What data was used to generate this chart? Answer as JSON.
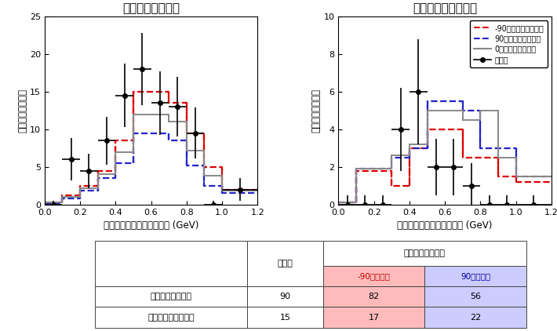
{
  "left_title": "電子ニュートリノ",
  "right_title": "反電子ニュートリノ",
  "xlabel": "ニュートリノのエネルギー (GeV)",
  "ylabel": "ニュートリノの数",
  "xlim": [
    0,
    1.2
  ],
  "left_ylim": [
    0,
    25
  ],
  "right_ylim": [
    0,
    10
  ],
  "left_yticks": [
    0,
    5,
    10,
    15,
    20,
    25
  ],
  "right_yticks": [
    0,
    2,
    4,
    6,
    8,
    10
  ],
  "bin_edges": [
    0.0,
    0.1,
    0.2,
    0.3,
    0.4,
    0.5,
    0.6,
    0.7,
    0.8,
    0.9,
    1.0,
    1.2
  ],
  "left_red": [
    0.3,
    1.2,
    2.5,
    4.5,
    8.5,
    15.0,
    15.0,
    13.5,
    9.5,
    5.0,
    2.0,
    1.5
  ],
  "left_blue": [
    0.2,
    0.8,
    1.8,
    3.5,
    5.5,
    9.5,
    9.5,
    8.5,
    5.2,
    2.5,
    1.5,
    1.5
  ],
  "left_gray": [
    0.3,
    1.0,
    2.2,
    4.0,
    7.0,
    12.0,
    12.0,
    11.0,
    7.2,
    3.8,
    1.8,
    1.5
  ],
  "left_obs_x": [
    0.05,
    0.15,
    0.25,
    0.35,
    0.45,
    0.55,
    0.65,
    0.75,
    0.85,
    0.95,
    1.1
  ],
  "left_obs_y": [
    0.0,
    6.0,
    4.5,
    8.5,
    14.5,
    18.0,
    13.5,
    13.0,
    9.5,
    0.0,
    2.0
  ],
  "left_obs_xerr": [
    0.05,
    0.05,
    0.05,
    0.05,
    0.05,
    0.05,
    0.05,
    0.05,
    0.05,
    0.05,
    0.1
  ],
  "left_obs_yerr": [
    0.5,
    2.8,
    2.3,
    3.2,
    4.2,
    4.8,
    4.2,
    4.0,
    3.4,
    0.5,
    1.5
  ],
  "right_red": [
    0.1,
    1.8,
    1.8,
    1.0,
    3.0,
    4.0,
    4.0,
    2.5,
    2.5,
    1.5,
    1.2,
    1.0
  ],
  "right_blue": [
    0.1,
    1.9,
    1.9,
    2.5,
    3.0,
    5.5,
    5.5,
    5.0,
    3.0,
    3.0,
    1.5,
    1.0
  ],
  "right_gray": [
    0.1,
    1.9,
    1.9,
    2.6,
    3.2,
    5.0,
    5.0,
    4.5,
    5.0,
    2.5,
    1.5,
    1.0
  ],
  "right_obs_x": [
    0.05,
    0.15,
    0.25,
    0.35,
    0.45,
    0.55,
    0.65,
    0.75,
    0.85,
    0.95,
    1.1
  ],
  "right_obs_y": [
    0.0,
    0.0,
    0.0,
    4.0,
    6.0,
    2.0,
    2.0,
    1.0,
    0.0,
    0.0,
    0.0
  ],
  "right_obs_xerr": [
    0.05,
    0.05,
    0.05,
    0.05,
    0.05,
    0.05,
    0.05,
    0.05,
    0.05,
    0.05,
    0.1
  ],
  "right_obs_yerr": [
    0.5,
    0.5,
    0.5,
    2.2,
    2.8,
    1.5,
    1.5,
    1.2,
    0.5,
    0.5,
    0.5
  ],
  "legend_labels": [
    "-90度での予想観測数",
    "90度での予測観測数",
    "0度での予測観測数",
    "観測数"
  ],
  "table_row_labels": [
    "電子ニュートリノ",
    "反電子ニュートリノ"
  ],
  "table_observed": [
    90,
    15
  ],
  "table_minus90": [
    82,
    17
  ],
  "table_plus90": [
    56,
    22
  ],
  "color_red": "#dd0000",
  "color_blue": "#2222cc",
  "color_gray": "#888888",
  "color_pink": "#ffbbbb",
  "color_lavender": "#ccccff"
}
